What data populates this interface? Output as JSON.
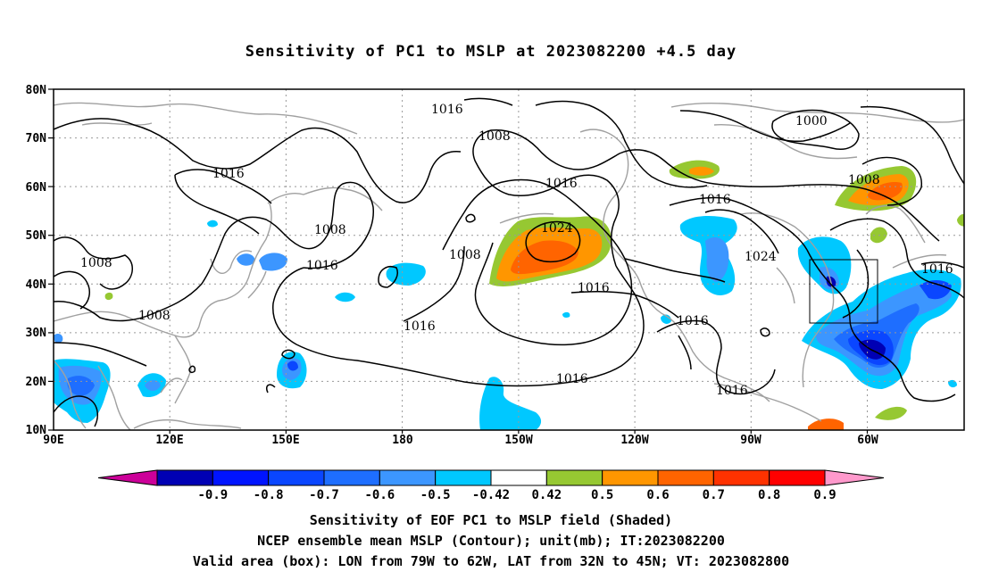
{
  "title": "Sensitivity of PC1 to MSLP at 2023082200 +4.5 day",
  "lat_labels": [
    "80N",
    "70N",
    "60N",
    "50N",
    "40N",
    "30N",
    "20N",
    "10N"
  ],
  "lon_labels": [
    "90E",
    "120E",
    "150E",
    "180",
    "150W",
    "120W",
    "90W",
    "60W"
  ],
  "map_extent": {
    "lon_range": [
      90,
      325
    ],
    "lat_range": [
      10,
      80
    ]
  },
  "contour_labels": [
    "1016",
    "1008",
    "1016",
    "1016",
    "1008",
    "1008",
    "1016",
    "1024",
    "1008",
    "1016",
    "1016",
    "1000",
    "1008",
    "1016",
    "1024",
    "1016",
    "1016",
    "1016",
    "1016",
    "1008",
    "1016"
  ],
  "valid_box": {
    "lon": [
      281,
      298
    ],
    "lat": [
      32,
      45
    ]
  },
  "colorbar": {
    "tick_labels": [
      "-0.9",
      "-0.8",
      "-0.7",
      "-0.6",
      "-0.5",
      "-0.42",
      "0.42",
      "0.5",
      "0.6",
      "0.7",
      "0.8",
      "0.9"
    ],
    "colors": [
      "#cc0099",
      "#0000b4",
      "#0014ff",
      "#0a46ff",
      "#1e6eff",
      "#3c96ff",
      "#00c8ff",
      "#ffffff",
      "#96c832",
      "#ff9600",
      "#ff6400",
      "#ff3200",
      "#ff0000",
      "#ff99cc"
    ]
  },
  "captions": [
    "Sensitivity of EOF PC1 to MSLP field (Shaded)",
    "NCEP ensemble mean MSLP (Contour); unit(mb); IT:2023082200",
    "Valid area (box): LON from 79W to 62W, LAT from 32N to 45N; VT: 2023082800"
  ]
}
